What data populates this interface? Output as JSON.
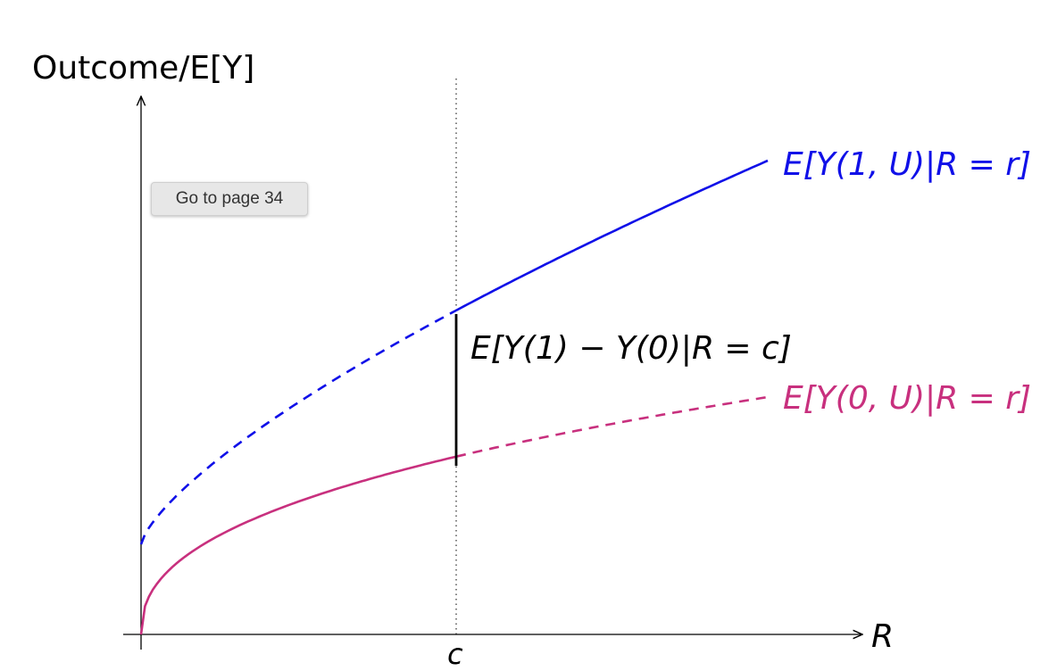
{
  "figure": {
    "y_axis_label": "Outcome/E[Y]",
    "x_axis_label": "R",
    "cutoff_label": "c",
    "treated_label": "E[Y(1, U)|R = r]",
    "control_label": "E[Y(0, U)|R = r]",
    "effect_label": "E[Y(1) − Y(0)|R = c]"
  },
  "tooltip": {
    "text": "Go to page 34"
  },
  "colors": {
    "treated": "#1010e8",
    "control": "#c8307e",
    "axis": "#000000",
    "effect": "#000000"
  }
}
